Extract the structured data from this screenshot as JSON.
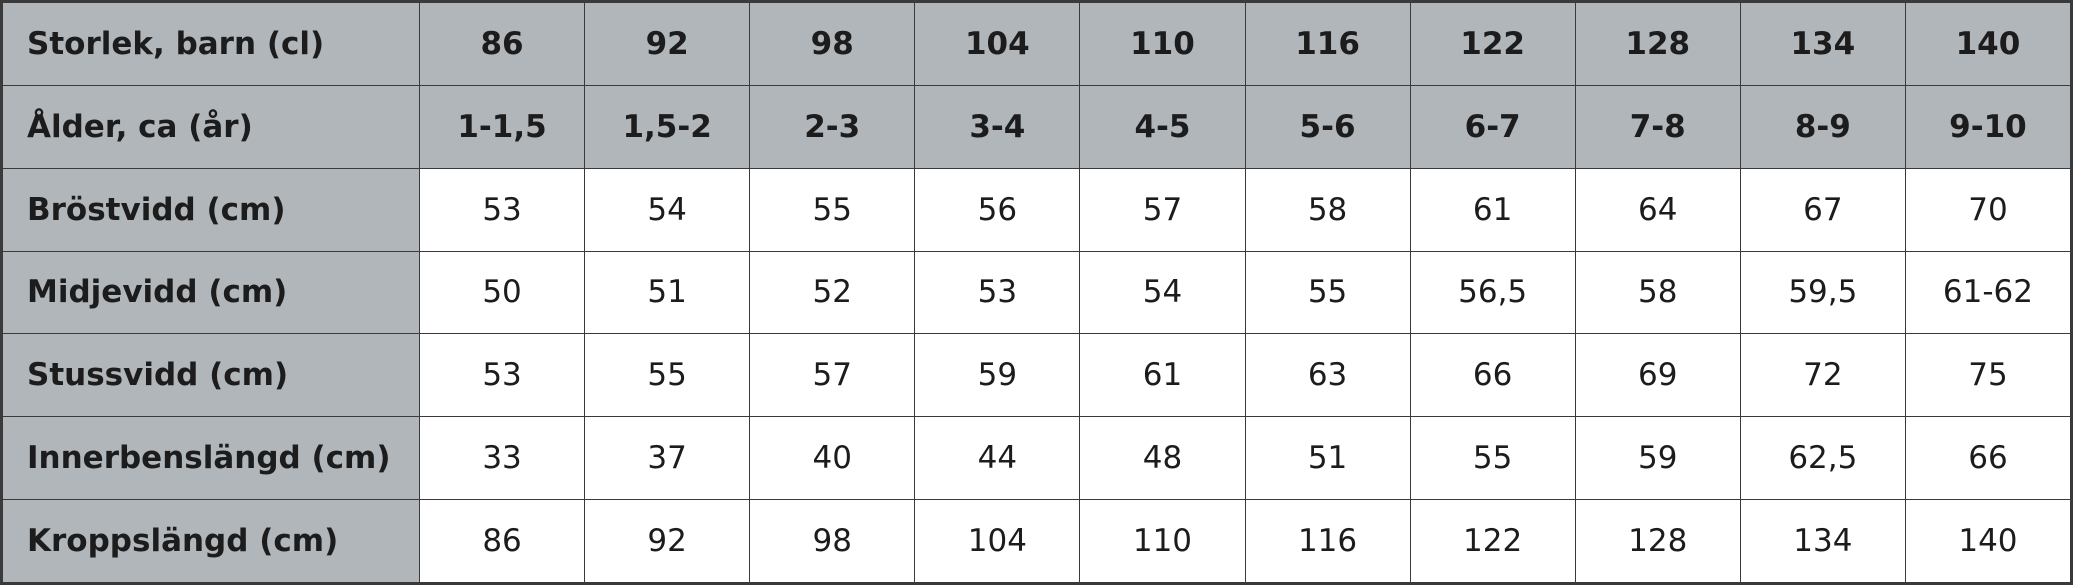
{
  "table": {
    "rows": [
      [
        "Storlek, barn (cl)",
        "86",
        "92",
        "98",
        "104",
        "110",
        "116",
        "122",
        "128",
        "134",
        "140"
      ],
      [
        "Ålder, ca (år)",
        "1-1,5",
        "1,5-2",
        "2-3",
        "3-4",
        "4-5",
        "5-6",
        "6-7",
        "7-8",
        "8-9",
        "9-10"
      ],
      [
        "Bröstvidd (cm)",
        "53",
        "54",
        "55",
        "56",
        "57",
        "58",
        "61",
        "64",
        "67",
        "70"
      ],
      [
        "Midjevidd (cm)",
        "50",
        "51",
        "52",
        "53",
        "54",
        "55",
        "56,5",
        "58",
        "59,5",
        "61-62"
      ],
      [
        "Stussvidd (cm)",
        "53",
        "55",
        "57",
        "59",
        "61",
        "63",
        "66",
        "69",
        "72",
        "75"
      ],
      [
        "Innerbenslängd (cm)",
        "33",
        "37",
        "40",
        "44",
        "48",
        "51",
        "55",
        "59",
        "62,5",
        "66"
      ],
      [
        "Kroppslängd (cm)",
        "86",
        "92",
        "98",
        "104",
        "110",
        "116",
        "122",
        "128",
        "134",
        "140"
      ]
    ]
  }
}
